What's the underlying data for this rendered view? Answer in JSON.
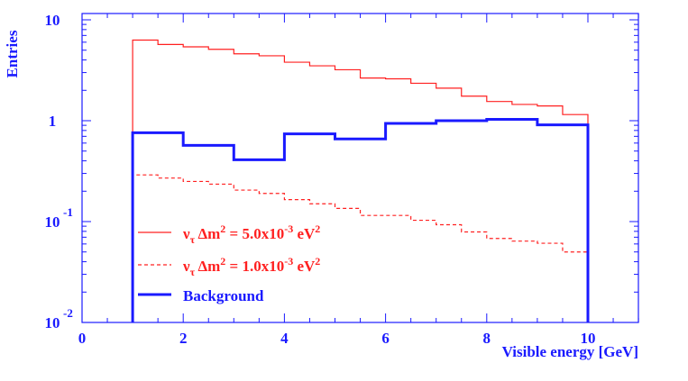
{
  "chart_data": {
    "type": "line",
    "title": "",
    "xlabel": "Visible energy [GeV]",
    "ylabel": "Entries",
    "xlim": [
      0,
      11
    ],
    "ylim": [
      0.01,
      14
    ],
    "yscale": "log",
    "x_ticks": [
      "0",
      "2",
      "4",
      "6",
      "8",
      "10"
    ],
    "y_ticks": [
      {
        "base": "10",
        "exp": "-2",
        "value": 0.01
      },
      {
        "base": "10",
        "exp": "-1",
        "value": 0.1
      },
      {
        "base": "1",
        "exp": "",
        "value": 1
      },
      {
        "base": "10",
        "exp": "",
        "value": 10
      }
    ],
    "series": [
      {
        "name": "nu_tau dm2 = 5.0x10-3 eV2",
        "style": "solid-thin",
        "color": "#ff2020",
        "edges": [
          1,
          1.5,
          2,
          2.5,
          3,
          3.5,
          4,
          4.5,
          5,
          5.5,
          6,
          6.5,
          7,
          7.5,
          8,
          8.5,
          9,
          9.5,
          10
        ],
        "values": [
          6.3,
          5.7,
          5.4,
          5.1,
          4.6,
          4.4,
          3.8,
          3.5,
          3.2,
          2.65,
          2.6,
          2.35,
          2.1,
          1.75,
          1.55,
          1.45,
          1.4,
          1.15
        ]
      },
      {
        "name": "nu_tau dm2 = 1.0x10-3 eV2",
        "style": "dashed",
        "color": "#ff2020",
        "edges": [
          1,
          1.5,
          2,
          2.5,
          3,
          3.5,
          4,
          4.5,
          5,
          5.5,
          6,
          6.5,
          7,
          7.5,
          8,
          8.5,
          9,
          9.5,
          10
        ],
        "values": [
          0.29,
          0.27,
          0.25,
          0.235,
          0.205,
          0.19,
          0.165,
          0.15,
          0.135,
          0.115,
          0.115,
          0.103,
          0.093,
          0.079,
          0.068,
          0.064,
          0.061,
          0.05
        ]
      },
      {
        "name": "Background",
        "style": "solid-thick",
        "color": "#1a1aff",
        "edges": [
          1,
          2,
          3,
          4,
          5,
          6,
          7,
          8,
          9,
          10
        ],
        "values": [
          0.76,
          0.57,
          0.41,
          0.74,
          0.66,
          0.94,
          1.0,
          1.03,
          0.91
        ]
      }
    ],
    "legend": {
      "placement": "bottom-left",
      "entries": [
        {
          "main": "ν",
          "sub": "τ",
          "mid": " Δm",
          "sup1": "2",
          "mid2": " = 5.0x10",
          "sup2": "-3",
          "mid3": " eV",
          "sup3": "2",
          "color": "#ff2020",
          "style": "solid-thin"
        },
        {
          "main": "ν",
          "sub": "τ",
          "mid": " Δm",
          "sup1": "2",
          "mid2": " = 1.0x10",
          "sup2": "-3",
          "mid3": " eV",
          "sup3": "2",
          "color": "#ff2020",
          "style": "dashed"
        },
        {
          "text": "Background",
          "color": "#1a1aff",
          "style": "solid-thick"
        }
      ]
    }
  }
}
